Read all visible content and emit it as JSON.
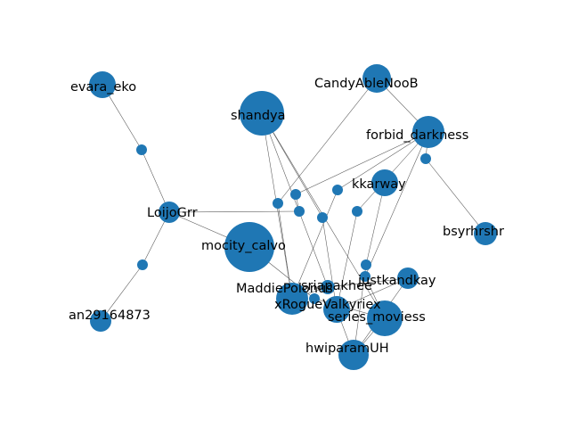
{
  "colors": {
    "node": "#1f77b4",
    "edge": "#555555",
    "label": "#000000"
  },
  "nodes": [
    {
      "id": "evara_eko",
      "label": "evara_eko",
      "size": 15
    },
    {
      "id": "CandyAbleNooB",
      "label": "CandyAbleNooB",
      "size": 16
    },
    {
      "id": "shandya",
      "label": "shandya",
      "size": 25
    },
    {
      "id": "forbid_darkness",
      "label": "forbid_darkness",
      "size": 18
    },
    {
      "id": "kkarway",
      "label": "kkarway",
      "size": 15
    },
    {
      "id": "LoijoGrr",
      "label": "LoijoGrr",
      "size": 12
    },
    {
      "id": "bsyrhrshr",
      "label": "bsyrhrshr",
      "size": 13
    },
    {
      "id": "mocity_calvo",
      "label": "mocity_calvo",
      "size": 28
    },
    {
      "id": "MaddiePolonus",
      "label": "MaddiePolonus",
      "size": 18
    },
    {
      "id": "sriapakhee",
      "label": "sriapakhee",
      "size": 8
    },
    {
      "id": "justkandkay",
      "label": "justkandkay",
      "size": 12
    },
    {
      "id": "xRogueValkyriex",
      "label": "xRogueValkyriex",
      "size": 15
    },
    {
      "id": "series_moviess",
      "label": "series_moviess",
      "size": 20
    },
    {
      "id": "hwiparamUH",
      "label": "hwiparamUH",
      "size": 17
    },
    {
      "id": "an29164873",
      "label": "an29164873",
      "size": 12
    },
    {
      "id": "h1",
      "label": "",
      "size": 6
    },
    {
      "id": "h2",
      "label": "",
      "size": 6
    },
    {
      "id": "h3",
      "label": "",
      "size": 6
    },
    {
      "id": "h4",
      "label": "",
      "size": 6
    },
    {
      "id": "h5",
      "label": "",
      "size": 6
    },
    {
      "id": "h6",
      "label": "",
      "size": 6
    },
    {
      "id": "h7",
      "label": "",
      "size": 6
    },
    {
      "id": "h8",
      "label": "",
      "size": 6
    },
    {
      "id": "h9",
      "label": "",
      "size": 6
    },
    {
      "id": "h10",
      "label": "",
      "size": 6
    },
    {
      "id": "h11",
      "label": "",
      "size": 6
    },
    {
      "id": "h12",
      "label": "",
      "size": 6
    }
  ],
  "edges": [
    [
      "evara_eko",
      "h1"
    ],
    [
      "h1",
      "LoijoGrr"
    ],
    [
      "LoijoGrr",
      "h2"
    ],
    [
      "h2",
      "an29164873"
    ],
    [
      "LoijoGrr",
      "mocity_calvo"
    ],
    [
      "LoijoGrr",
      "h4"
    ],
    [
      "h4",
      "h7"
    ],
    [
      "h7",
      "forbid_darkness"
    ],
    [
      "CandyAbleNooB",
      "h3"
    ],
    [
      "h3",
      "MaddiePolonus"
    ],
    [
      "CandyAbleNooB",
      "forbid_darkness"
    ],
    [
      "forbid_darkness",
      "h8"
    ],
    [
      "h8",
      "bsyrhrshr"
    ],
    [
      "forbid_darkness",
      "h5"
    ],
    [
      "h5",
      "MaddiePolonus"
    ],
    [
      "forbid_darkness",
      "h6"
    ],
    [
      "h6",
      "xRogueValkyriex"
    ],
    [
      "forbid_darkness",
      "h11"
    ],
    [
      "h11",
      "series_moviess"
    ],
    [
      "shandya",
      "MaddiePolonus"
    ],
    [
      "shandya",
      "h9"
    ],
    [
      "h9",
      "xRogueValkyriex"
    ],
    [
      "shandya",
      "sriapakhee"
    ],
    [
      "shandya",
      "series_moviess"
    ],
    [
      "kkarway",
      "h10"
    ],
    [
      "h10",
      "hwiparamUH"
    ],
    [
      "mocity_calvo",
      "h12"
    ],
    [
      "h12",
      "series_moviess"
    ],
    [
      "MaddiePolonus",
      "sriapakhee"
    ],
    [
      "sriapakhee",
      "justkandkay"
    ],
    [
      "justkandkay",
      "hwiparamUH"
    ],
    [
      "justkandkay",
      "xRogueValkyriex"
    ],
    [
      "xRogueValkyriex",
      "hwiparamUH"
    ],
    [
      "series_moviess",
      "hwiparamUH"
    ]
  ]
}
